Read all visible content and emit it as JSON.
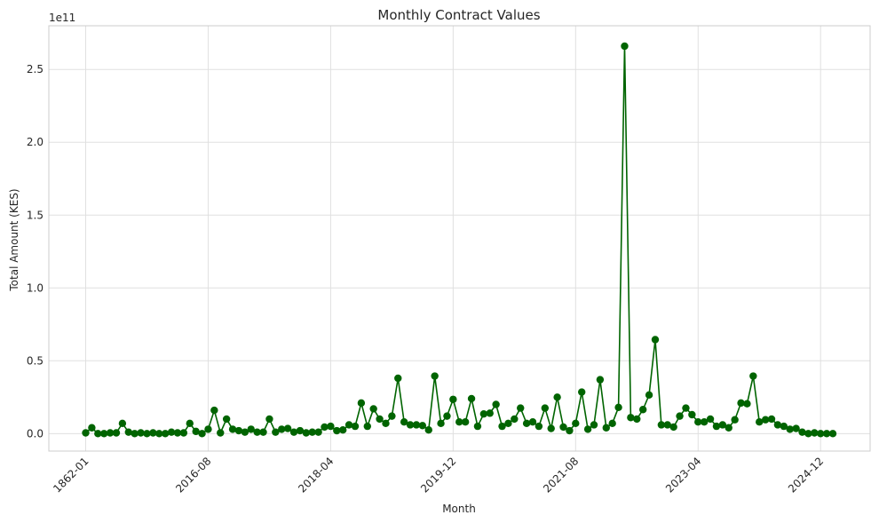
{
  "chart_data": {
    "type": "line",
    "title": "Monthly Contract Values",
    "xlabel": "Month",
    "ylabel": "Total Amount (KES)",
    "y_offset_label": "1e11",
    "ylim": [
      -0.12,
      2.8
    ],
    "grid": true,
    "line_color": "#006400",
    "marker": "circle",
    "x_ticks": [
      {
        "index": 0,
        "label": "1862-01"
      },
      {
        "index": 20,
        "label": "2016-08"
      },
      {
        "index": 40,
        "label": "2018-04"
      },
      {
        "index": 60,
        "label": "2019-12"
      },
      {
        "index": 80,
        "label": "2021-08"
      },
      {
        "index": 100,
        "label": "2023-04"
      },
      {
        "index": 120,
        "label": "2024-12"
      }
    ],
    "y_ticks": [
      {
        "value": 0.0,
        "label": "0.0"
      },
      {
        "value": 0.5,
        "label": "0.5"
      },
      {
        "value": 1.0,
        "label": "1.0"
      },
      {
        "value": 1.5,
        "label": "1.5"
      },
      {
        "value": 2.0,
        "label": "2.0"
      },
      {
        "value": 2.5,
        "label": "2.5"
      }
    ],
    "series": [
      {
        "values": [
          0.005,
          0.04,
          0.0,
          0.0,
          0.005,
          0.005,
          0.07,
          0.01,
          0.0,
          0.005,
          0.0,
          0.005,
          0.0,
          0.0,
          0.01,
          0.005,
          0.005,
          0.07,
          0.015,
          0.0,
          0.03,
          0.16,
          0.005,
          0.1,
          0.03,
          0.02,
          0.01,
          0.03,
          0.01,
          0.01,
          0.1,
          0.01,
          0.03,
          0.035,
          0.01,
          0.02,
          0.005,
          0.01,
          0.01,
          0.045,
          0.05,
          0.02,
          0.025,
          0.06,
          0.05,
          0.21,
          0.05,
          0.17,
          0.1,
          0.07,
          0.12,
          0.38,
          0.08,
          0.06,
          0.06,
          0.055,
          0.025,
          0.395,
          0.07,
          0.12,
          0.235,
          0.08,
          0.08,
          0.24,
          0.05,
          0.135,
          0.14,
          0.2,
          0.05,
          0.07,
          0.1,
          0.175,
          0.07,
          0.08,
          0.05,
          0.175,
          0.035,
          0.25,
          0.045,
          0.02,
          0.07,
          0.285,
          0.03,
          0.06,
          0.37,
          0.04,
          0.07,
          0.18,
          2.66,
          0.11,
          0.1,
          0.165,
          0.265,
          0.645,
          0.06,
          0.06,
          0.045,
          0.12,
          0.175,
          0.13,
          0.08,
          0.08,
          0.1,
          0.05,
          0.06,
          0.04,
          0.095,
          0.21,
          0.205,
          0.395,
          0.08,
          0.095,
          0.1,
          0.06,
          0.05,
          0.03,
          0.035,
          0.01,
          0.0,
          0.005,
          0.0,
          0.0,
          0.0
        ]
      }
    ]
  }
}
